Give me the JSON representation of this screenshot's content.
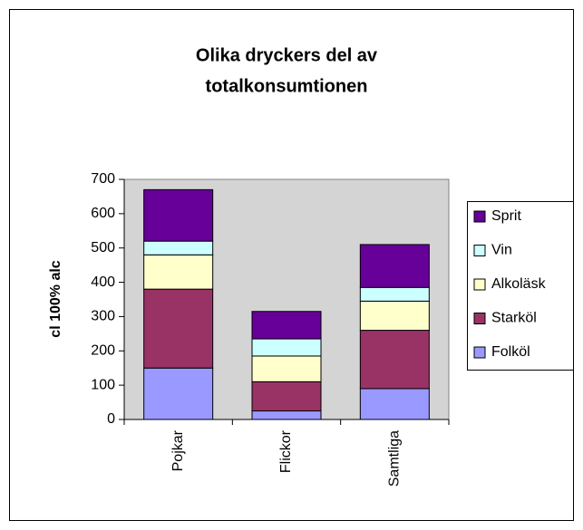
{
  "chart_data": {
    "type": "stacked-bar",
    "title": [
      "Olika dryckers del av",
      "totalkonsumtionen"
    ],
    "y_label": "cl 100% alc",
    "categories": [
      "Pojkar",
      "Flickor",
      "Samtliga"
    ],
    "series": [
      {
        "name": "Folköl",
        "color": "#9999ff",
        "values": [
          150,
          25,
          90
        ]
      },
      {
        "name": "Starköl",
        "color": "#993366",
        "values": [
          230,
          85,
          170
        ]
      },
      {
        "name": "Alkoläsk",
        "color": "#ffffcc",
        "values": [
          100,
          75,
          85
        ]
      },
      {
        "name": "Vin",
        "color": "#ccffff",
        "values": [
          40,
          50,
          40
        ]
      },
      {
        "name": "Sprit",
        "color": "#660099",
        "values": [
          150,
          80,
          125
        ]
      }
    ],
    "ylim": [
      0,
      700
    ],
    "yticks": [
      0,
      100,
      200,
      300,
      400,
      500,
      600,
      700
    ],
    "grid": false,
    "legend": "right"
  }
}
